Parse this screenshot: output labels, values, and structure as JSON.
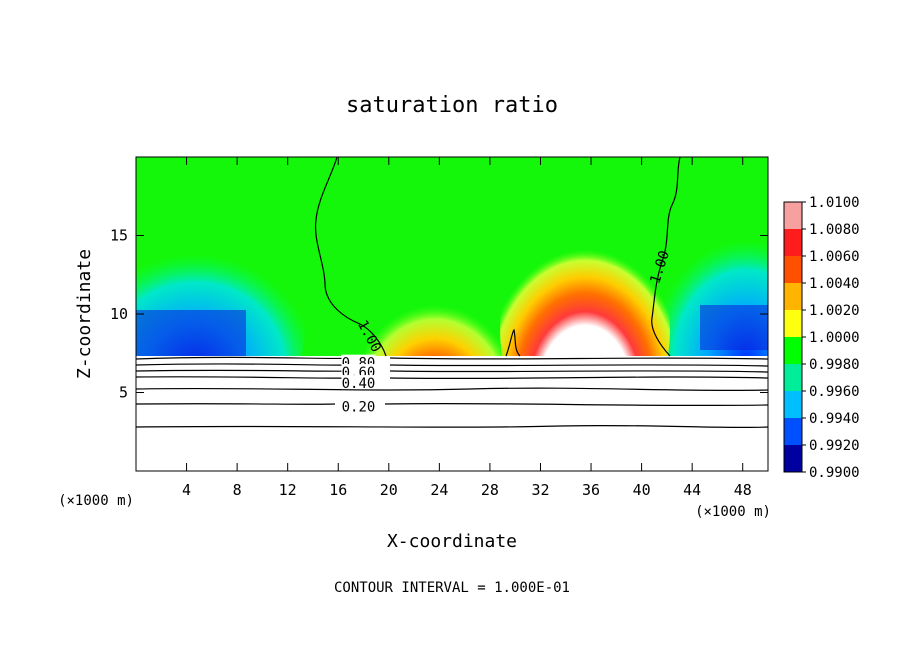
{
  "chart_data": {
    "type": "heatmap",
    "title": "saturation ratio",
    "xlabel": "X-coordinate",
    "ylabel": "Z-coordinate",
    "x_unit": "(×1000 m)",
    "footer": "CONTOUR INTERVAL = 1.000E-01",
    "xlim": [
      0,
      50
    ],
    "ylim": [
      0,
      20
    ],
    "x_ticks": [
      4,
      8,
      12,
      16,
      20,
      24,
      28,
      32,
      36,
      40,
      44,
      48
    ],
    "y_ticks": [
      5,
      10,
      15
    ],
    "colorbar": {
      "min": 0.99,
      "max": 1.01,
      "labels": [
        "1.0100",
        "1.0080",
        "1.0060",
        "1.0040",
        "1.0020",
        "1.0000",
        "0.9980",
        "0.9960",
        "0.9940",
        "0.9920",
        "0.9900"
      ]
    },
    "contour_labels": [
      {
        "text": "1.00",
        "x": 18.5,
        "z": 8.6
      },
      {
        "text": "1.00",
        "x": 41.4,
        "z": 13.0
      },
      {
        "text": "0.80",
        "x": 17.6,
        "z": 6.9
      },
      {
        "text": "0.60",
        "x": 17.6,
        "z": 6.3
      },
      {
        "text": "0.40",
        "x": 17.6,
        "z": 5.6
      },
      {
        "text": "0.20",
        "x": 17.6,
        "z": 4.1
      }
    ]
  },
  "colors": {
    "background": "#ffffff",
    "colorbar_stops": [
      "#f7a0a0",
      "#ff1c1c",
      "#ff5000",
      "#ffb400",
      "#ffff10",
      "#00ff00",
      "#00ee9a",
      "#00bfff",
      "#0050ff",
      "#0000a0",
      "#5a008c"
    ]
  }
}
